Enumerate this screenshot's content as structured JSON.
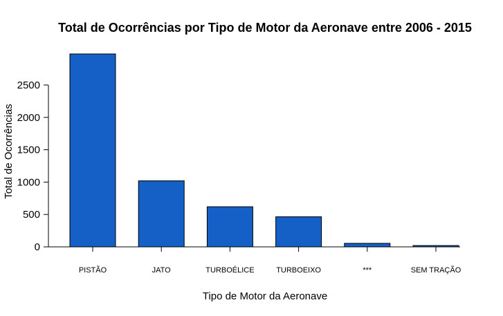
{
  "chart_data": {
    "type": "bar",
    "title": "Total de Ocorrências por Tipo de Motor da Aeronave entre  2006 - 2015",
    "xlabel": "Tipo de Motor da Aeronave",
    "ylabel": "Total de Ocorrências",
    "categories": [
      "PISTÃO",
      "JATO",
      "TURBOÉLICE",
      "TURBOEIXO",
      "***",
      "SEM TRAÇÃO"
    ],
    "values": [
      2980,
      1020,
      620,
      465,
      55,
      20
    ],
    "yticks": [
      0,
      500,
      1000,
      1500,
      2000,
      2500
    ],
    "ylim": [
      0,
      2980
    ],
    "bar_color": "#1560C6",
    "bar_edge_color": "#000000",
    "grid": false
  }
}
